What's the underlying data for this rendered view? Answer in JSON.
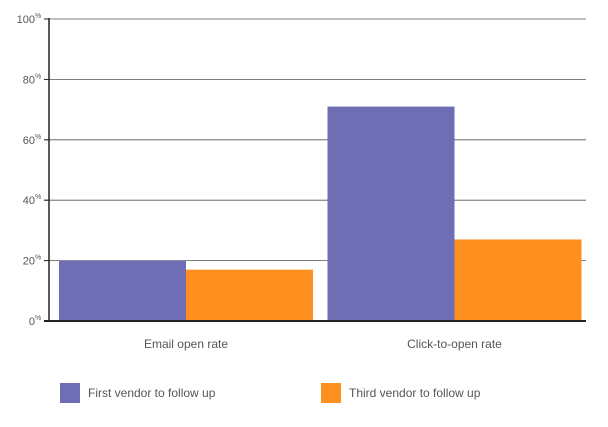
{
  "chart_data": {
    "type": "bar",
    "categories": [
      "Email open rate",
      "Click-to-open rate"
    ],
    "series": [
      {
        "name": "First vendor to follow up",
        "values": [
          20,
          71
        ],
        "color": "#6f6db3"
      },
      {
        "name": "Third vendor to follow up",
        "values": [
          17,
          27
        ],
        "color": "#ff9020"
      }
    ],
    "yticks": [
      "0",
      "20",
      "40",
      "60",
      "80",
      "100"
    ],
    "ytick_suffix": "%",
    "ylim": [
      0,
      100
    ],
    "grid": true,
    "legend": "bottom"
  }
}
